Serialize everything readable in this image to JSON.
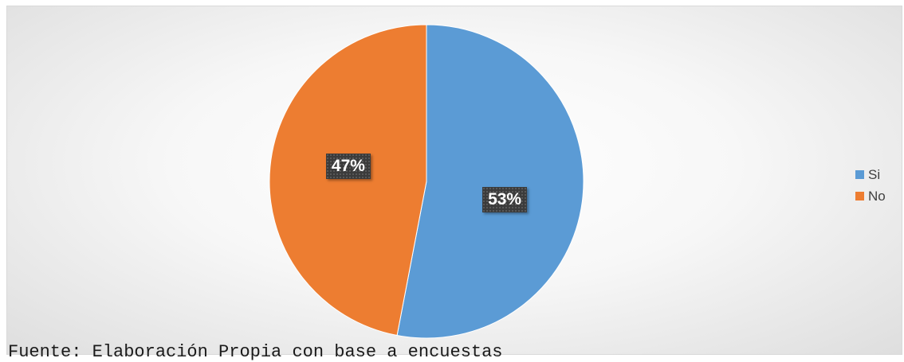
{
  "chart_data": {
    "type": "pie",
    "categories": [
      "Si",
      "No"
    ],
    "values": [
      53,
      47
    ],
    "data_labels": [
      "53%",
      "47%"
    ],
    "colors": [
      "#5b9bd5",
      "#ed7d31"
    ],
    "legend_position": "right",
    "title": ""
  },
  "legend": {
    "items": [
      {
        "label": "Si",
        "color": "#5b9bd5"
      },
      {
        "label": "No",
        "color": "#ed7d31"
      }
    ]
  },
  "source_note": "Fuente: Elaboración Propia con base a encuestas"
}
